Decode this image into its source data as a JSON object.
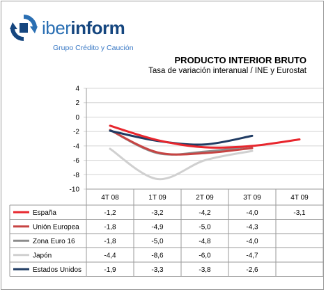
{
  "logo": {
    "name_bold": "iber",
    "name_rest": "inform",
    "tagline": "Grupo Crédito y Caución"
  },
  "chart_data": {
    "type": "line",
    "title": "PRODUCTO INTERIOR BRUTO",
    "subtitle": "Tasa de variación interanual / INE y Eurostat",
    "categories": [
      "4T 08",
      "1T 09",
      "2T 09",
      "3T 09",
      "4T 09"
    ],
    "ylim": [
      -10,
      4
    ],
    "yticks": [
      "4",
      "2",
      "0",
      "-2",
      "-4",
      "-6",
      "-8",
      "-10"
    ],
    "grid": true,
    "legend_position": "table-below",
    "series": [
      {
        "name": "España",
        "color": "#e8262d",
        "values": [
          -1.2,
          -3.2,
          -4.2,
          -4.0,
          -3.1
        ],
        "labels": [
          "-1,2",
          "-3,2",
          "-4,2",
          "-4,0",
          "-3,1"
        ]
      },
      {
        "name": "Unión Europea",
        "color": "#c74443",
        "values": [
          -1.8,
          -4.9,
          -5.0,
          -4.3,
          null
        ],
        "labels": [
          "-1,8",
          "-4,9",
          "-5,0",
          "-4,3",
          ""
        ]
      },
      {
        "name": "Zona Euro 16",
        "color": "#8c8c8c",
        "values": [
          -1.8,
          -5.0,
          -4.8,
          -4.0,
          null
        ],
        "labels": [
          "-1,8",
          "-5,0",
          "-4,8",
          "-4,0",
          ""
        ]
      },
      {
        "name": "Japón",
        "color": "#d0d0d0",
        "values": [
          -4.4,
          -8.6,
          -6.0,
          -4.7,
          null
        ],
        "labels": [
          "-4,4",
          "-8,6",
          "-6,0",
          "-4,7",
          ""
        ]
      },
      {
        "name": "Estados Unidos",
        "color": "#1f3b63",
        "values": [
          -1.9,
          -3.3,
          -3.8,
          -2.6,
          null
        ],
        "labels": [
          "-1,9",
          "-3,3",
          "-3,8",
          "-2,6",
          ""
        ]
      }
    ]
  }
}
